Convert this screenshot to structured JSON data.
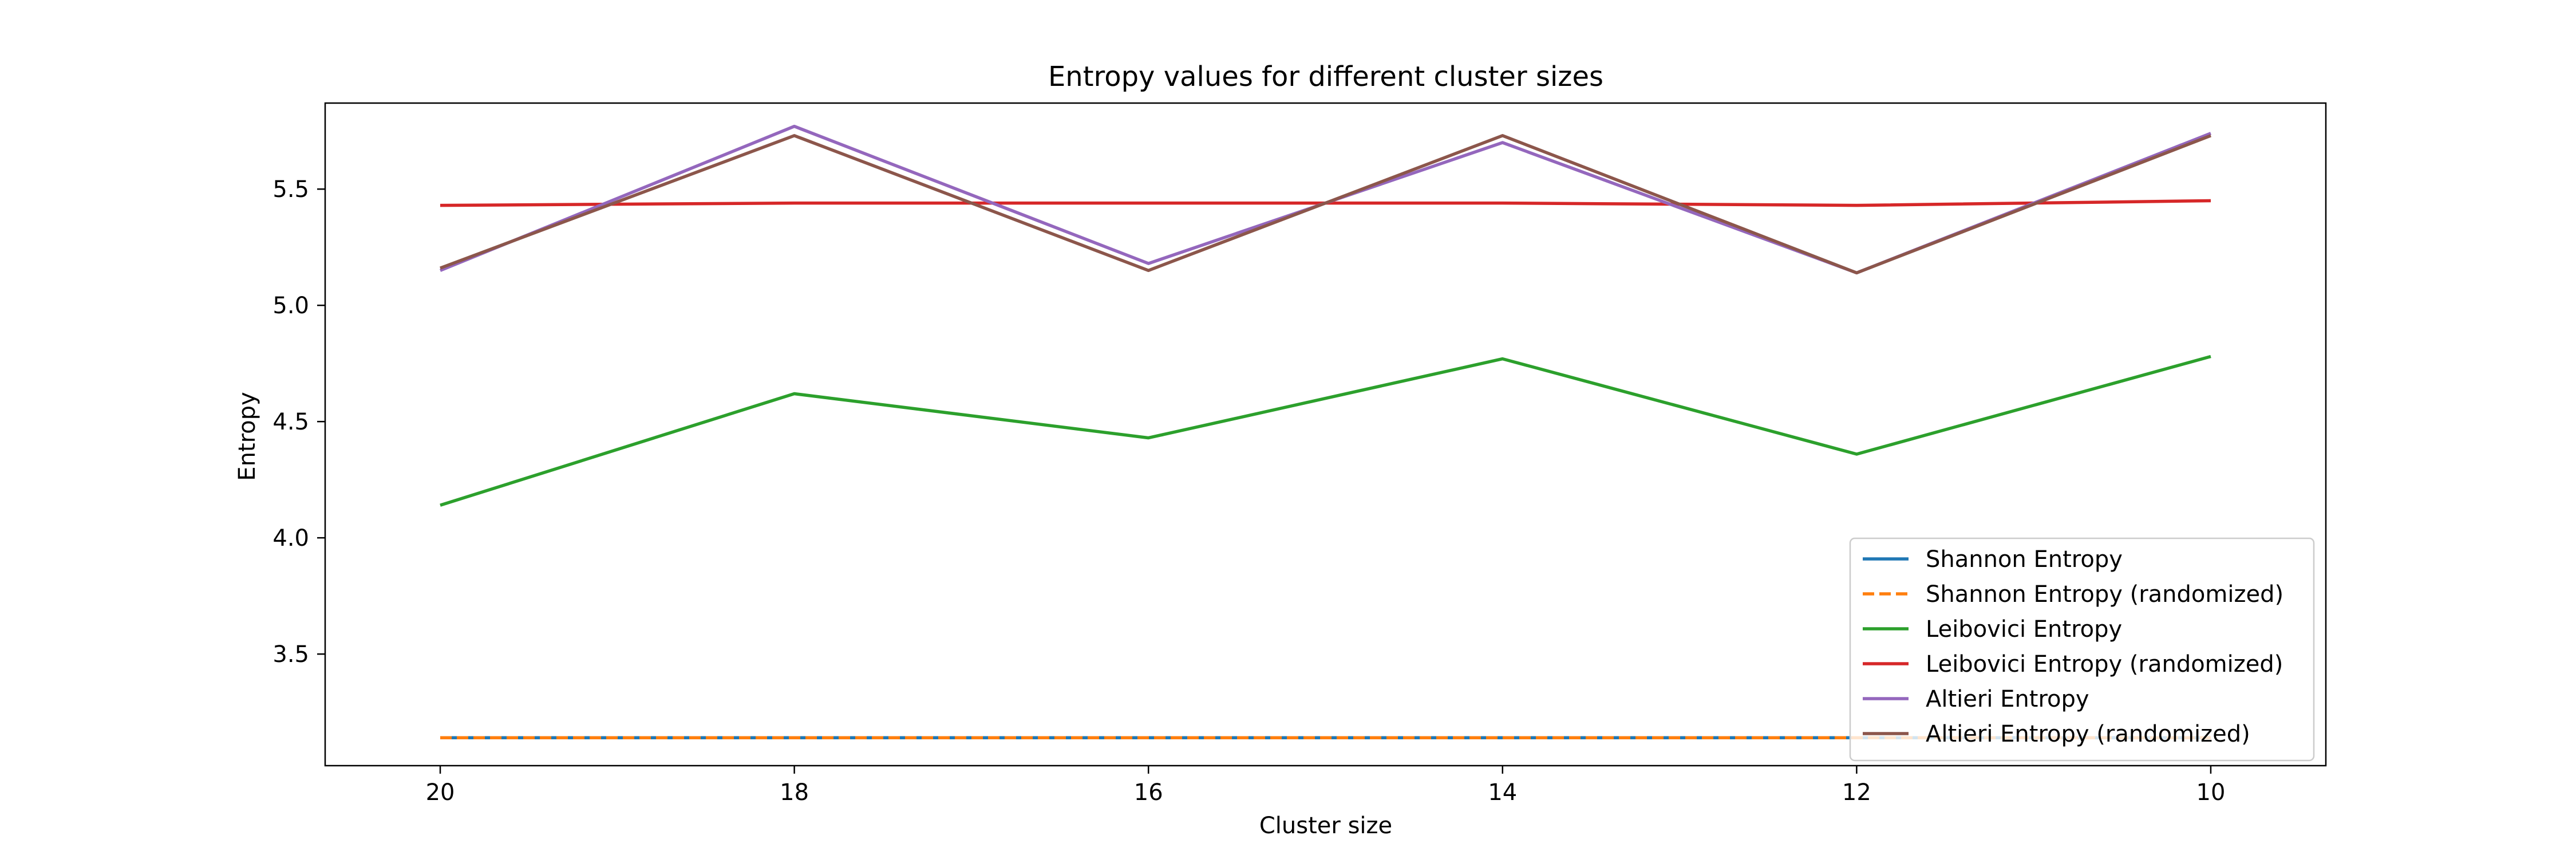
{
  "chart_data": {
    "type": "line",
    "title": "Entropy values for different cluster sizes",
    "xlabel": "Cluster size",
    "ylabel": "Entropy",
    "x": [
      20,
      18,
      16,
      14,
      12,
      10
    ],
    "x_reversed": true,
    "xlim": [
      20.65,
      9.35
    ],
    "ylim": [
      3.02,
      5.87
    ],
    "yticks": [
      3.5,
      4.0,
      4.5,
      5.0,
      5.5
    ],
    "ytick_labels": [
      "3.5",
      "4.0",
      "4.5",
      "5.0",
      "5.5"
    ],
    "xticks": [
      20,
      18,
      16,
      14,
      12,
      10
    ],
    "xtick_labels": [
      "20",
      "18",
      "16",
      14,
      "12",
      "10"
    ],
    "grid": false,
    "legend_position": "lower-right",
    "series": [
      {
        "name": "Shannon Entropy",
        "color": "#1f77b4",
        "dash": "solid",
        "values": [
          3.14,
          3.14,
          3.14,
          3.14,
          3.14,
          3.14
        ]
      },
      {
        "name": "Shannon Entropy (randomized)",
        "color": "#ff7f0e",
        "dash": "dashed",
        "values": [
          3.14,
          3.14,
          3.14,
          3.14,
          3.14,
          3.14
        ]
      },
      {
        "name": "Leibovici Entropy",
        "color": "#2ca02c",
        "dash": "solid",
        "values": [
          4.14,
          4.62,
          4.43,
          4.77,
          4.36,
          4.78
        ]
      },
      {
        "name": "Leibovici Entropy (randomized)",
        "color": "#d62728",
        "dash": "solid",
        "values": [
          5.43,
          5.44,
          5.44,
          5.44,
          5.43,
          5.45
        ]
      },
      {
        "name": "Altieri Entropy",
        "color": "#9467bd",
        "dash": "solid",
        "values": [
          5.15,
          5.77,
          5.18,
          5.7,
          5.14,
          5.74
        ]
      },
      {
        "name": "Altieri Entropy (randomized)",
        "color": "#8c564b",
        "dash": "solid",
        "values": [
          5.16,
          5.73,
          5.15,
          5.73,
          5.14,
          5.73
        ]
      }
    ]
  }
}
